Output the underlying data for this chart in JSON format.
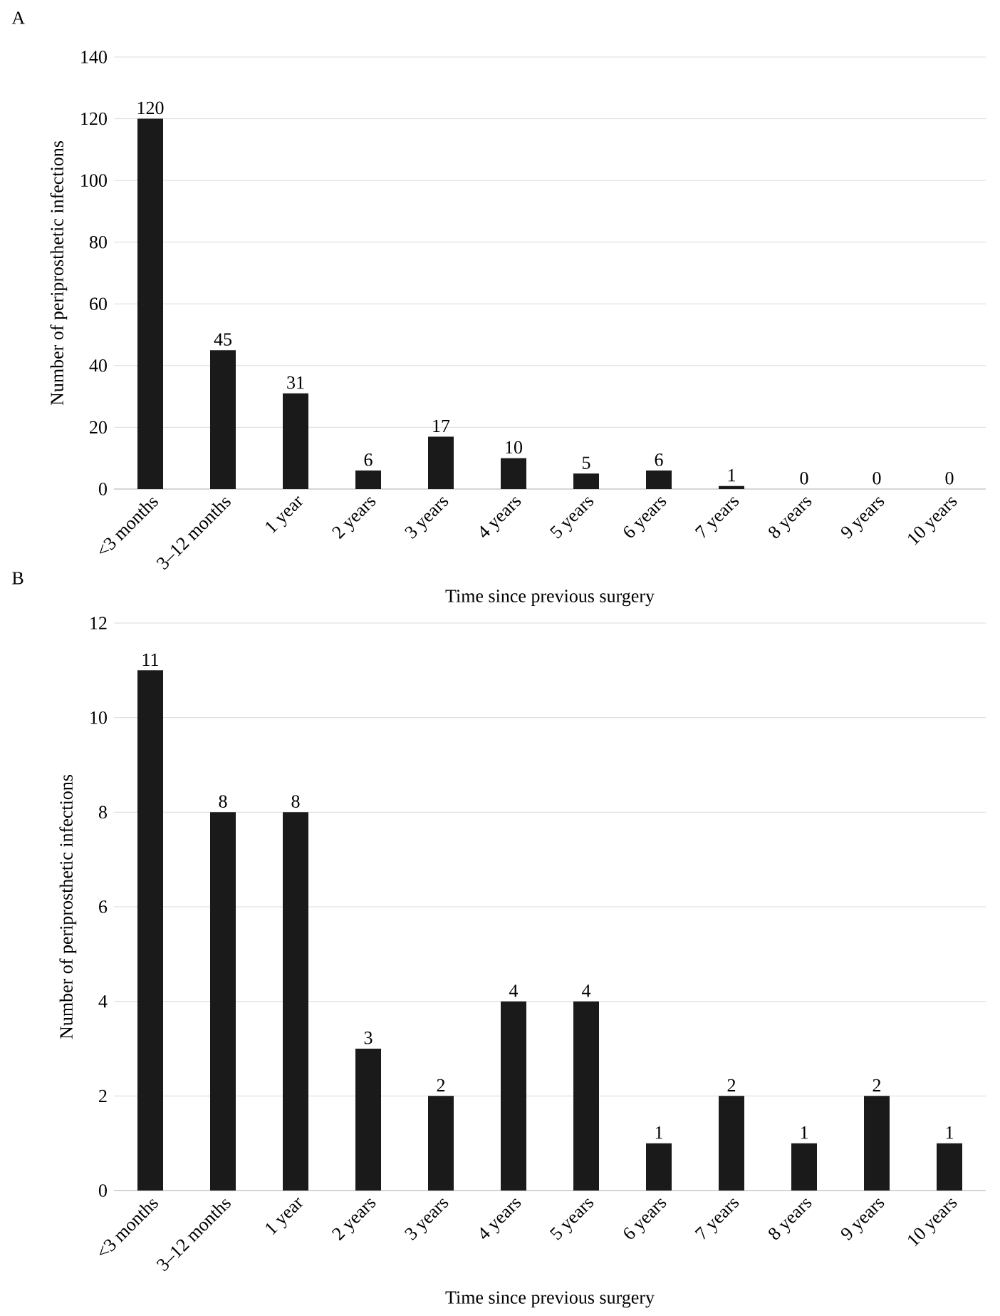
{
  "chart_data": [
    {
      "type": "bar",
      "title": "A",
      "xlabel": "Time since previous surgery",
      "ylabel": "Number of periprosthetic infections",
      "categories": [
        "<3 months",
        "3–12 months",
        "1 year",
        "2 years",
        "3 years",
        "4 years",
        "5 years",
        "6 years",
        "7 years",
        "8 years",
        "9 years",
        "10 years"
      ],
      "values": [
        120,
        45,
        31,
        6,
        17,
        10,
        5,
        6,
        1,
        0,
        0,
        0
      ],
      "color": "#1a1a1a",
      "ylim": [
        0,
        140
      ],
      "yticks": [
        0,
        20,
        40,
        60,
        80,
        100,
        120,
        140
      ],
      "grid": "y",
      "data_labels": true
    },
    {
      "type": "bar",
      "title": "B",
      "xlabel": "Time since previous surgery",
      "ylabel": "Number of periprosthetic infections",
      "categories": [
        "<3 months",
        "3–12 months",
        "1 year",
        "2 years",
        "3 years",
        "4 years",
        "5 years",
        "6 years",
        "7 years",
        "8 years",
        "9 years",
        "10 years"
      ],
      "values": [
        11,
        8,
        8,
        3,
        2,
        4,
        4,
        1,
        2,
        1,
        2,
        1
      ],
      "color": "#1a1a1a",
      "ylim": [
        0,
        12
      ],
      "yticks": [
        0,
        2,
        4,
        6,
        8,
        10,
        12
      ],
      "grid": "y",
      "data_labels": true
    }
  ]
}
